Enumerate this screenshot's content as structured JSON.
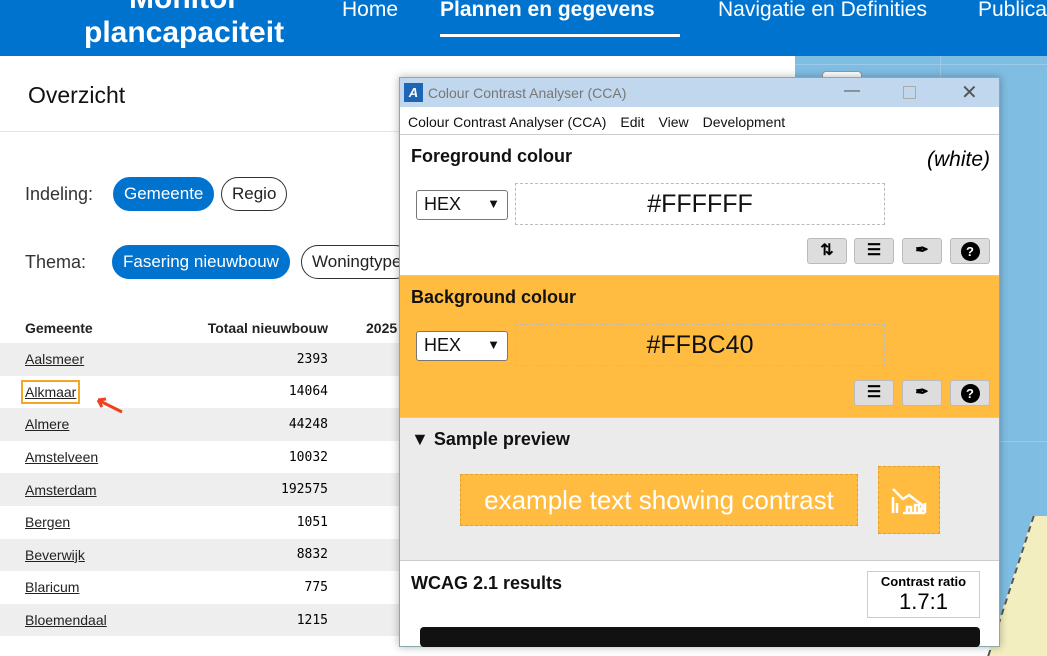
{
  "header": {
    "logo": "Monitor plancapaciteit",
    "logo_line1": "Monitor",
    "logo_line2": "plancapaciteit",
    "nav": [
      "Home",
      "Plannen en gegevens",
      "Navigatie en Definities",
      "Publica"
    ],
    "active": "Plannen en gegevens",
    "color": "#0073CF"
  },
  "page": {
    "title": "Overzicht",
    "indeling_label": "Indeling:",
    "indeling": [
      "Gemeente",
      "Regio"
    ],
    "thema_label": "Thema:",
    "thema": [
      "Fasering nieuwbouw",
      "Woningtype"
    ]
  },
  "table": {
    "headers": [
      "Gemeente",
      "Totaal nieuwbouw",
      "2025"
    ],
    "rows": [
      [
        "Aalsmeer",
        "2393"
      ],
      [
        "Alkmaar",
        "14064"
      ],
      [
        "Almere",
        "44248"
      ],
      [
        "Amstelveen",
        "10032"
      ],
      [
        "Amsterdam",
        "192575"
      ],
      [
        "Bergen",
        "1051"
      ],
      [
        "Beverwijk",
        "8832"
      ],
      [
        "Blaricum",
        "775"
      ],
      [
        "Bloemendaal",
        "1215"
      ]
    ]
  },
  "cca": {
    "title": "Colour Contrast Analyser (CCA)",
    "menu": [
      "Colour Contrast Analyser (CCA)",
      "Edit",
      "View",
      "Development"
    ],
    "fg_label": "Foreground colour",
    "fg_name": "(white)",
    "fg_format": "HEX",
    "fg_value": "#FFFFFF",
    "bg_label": "Background colour",
    "bg_format": "HEX",
    "bg_value": "#FFBC40",
    "bg_color": "#FFBC40",
    "preview_label": "Sample preview",
    "preview_text": "example text showing contrast",
    "wcag_label": "WCAG 2.1 results",
    "ratio_label": "Contrast ratio",
    "ratio": "1.7:1"
  }
}
